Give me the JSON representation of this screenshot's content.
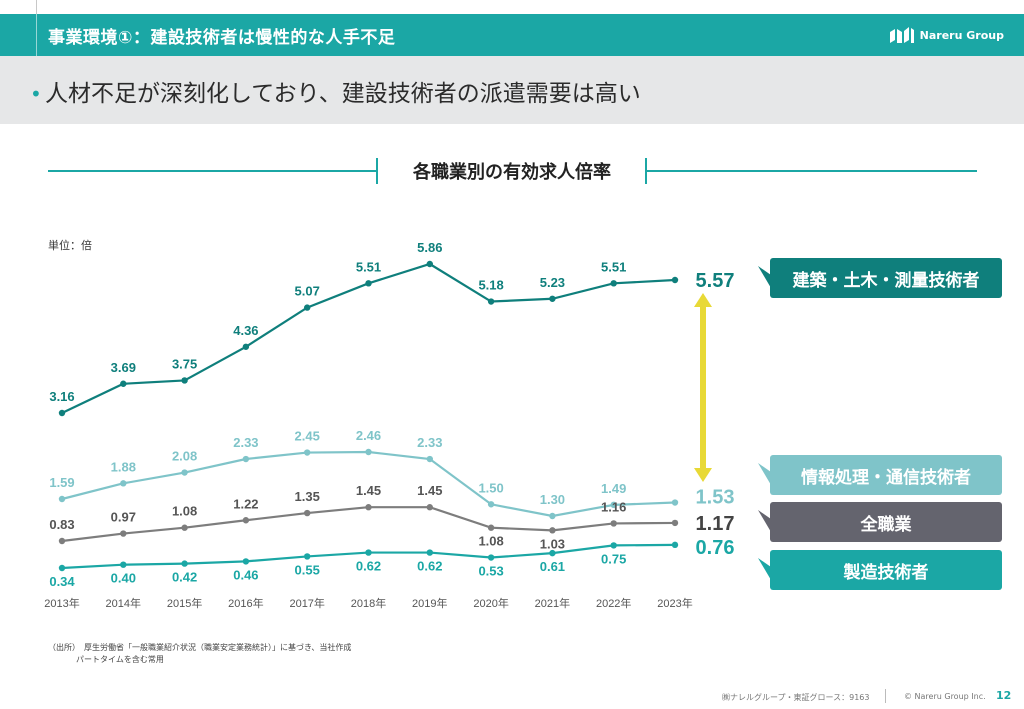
{
  "header": {
    "title": "事業環境①：建設技術者は慢性的な人手不足",
    "logo_text": "Nareru Group",
    "logo_icon": "nareru-logo-icon"
  },
  "headline": "人材不足が深刻化しており、建設技術者の派遣需要は高い",
  "colors": {
    "teal": "#1ba7a5",
    "dark_teal": "#0f7f7c",
    "light_teal": "#7fc4c9",
    "gray": "#7d7d7d",
    "dark_gray": "#64646e",
    "arrow_yellow": "#e8d936",
    "band_gray": "#e6e7e8"
  },
  "chart_data": {
    "type": "line",
    "title": "各職業別の有効求人倍率",
    "unit_label": "単位：倍",
    "categories": [
      "2013年",
      "2014年",
      "2015年",
      "2016年",
      "2017年",
      "2018年",
      "2019年",
      "2020年",
      "2021年",
      "2022年",
      "2023年"
    ],
    "ylim": [
      0,
      6.5
    ],
    "grid": false,
    "series": [
      {
        "name": "建築・土木・測量技術者",
        "color": "#0f7f7c",
        "values": [
          3.16,
          3.69,
          3.75,
          4.36,
          5.07,
          5.51,
          5.86,
          5.18,
          5.23,
          5.51,
          5.57
        ]
      },
      {
        "name": "情報処理・通信技術者",
        "color": "#7fc4c9",
        "values": [
          1.59,
          1.88,
          2.08,
          2.33,
          2.45,
          2.46,
          2.33,
          1.5,
          1.3,
          1.49,
          1.53
        ]
      },
      {
        "name": "全職業",
        "color": "#7d7d7d",
        "values": [
          0.83,
          0.97,
          1.08,
          1.22,
          1.35,
          1.45,
          1.45,
          1.08,
          1.03,
          1.16,
          1.17
        ]
      },
      {
        "name": "製造技術者",
        "color": "#1ba7a5",
        "values": [
          0.34,
          0.4,
          0.42,
          0.46,
          0.55,
          0.62,
          0.62,
          0.53,
          0.61,
          0.75,
          0.76
        ]
      }
    ],
    "final_labels": [
      "5.57",
      "1.53",
      "1.17",
      "0.76"
    ]
  },
  "legend_tags": [
    {
      "label": "建築・土木・測量技術者",
      "bg": "#0f7f7c"
    },
    {
      "label": "情報処理・通信技術者",
      "bg": "#7fc4c9"
    },
    {
      "label": "全職業",
      "bg": "#64646e"
    },
    {
      "label": "製造技術者",
      "bg": "#1ba7a5"
    }
  ],
  "source": {
    "line1": "（出所）　厚生労働省「一般職業紹介状況（職業安定業務統計）」に基づき、当社作成",
    "line2": "パートタイムを含む常用"
  },
  "footer": {
    "company": "㈱ナレルグループ・東証グロース：9163",
    "copyright": "© Nareru Group Inc.",
    "page": "12"
  }
}
